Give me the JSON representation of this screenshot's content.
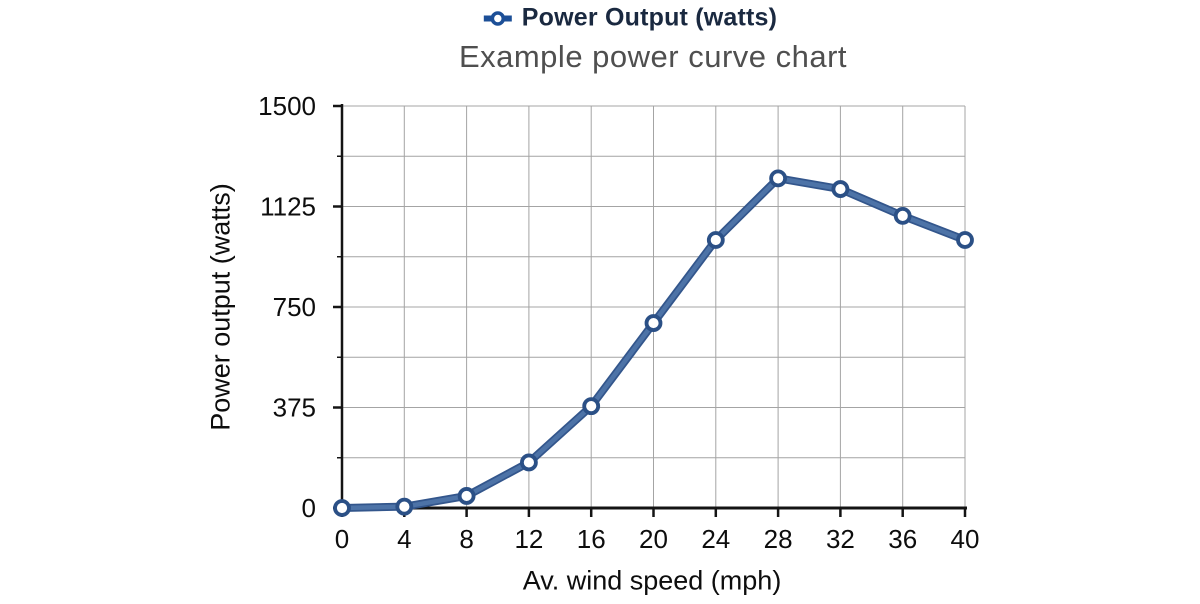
{
  "legend": {
    "label": "Power Output (watts)"
  },
  "chart_data": {
    "type": "line",
    "title": "Example power curve chart",
    "xlabel": "Av. wind speed (mph)",
    "ylabel": "Power output (watts)",
    "series": [
      {
        "name": "Power Output (watts)",
        "x": [
          0,
          4,
          8,
          12,
          16,
          20,
          24,
          28,
          32,
          36,
          40
        ],
        "y": [
          0,
          5,
          45,
          170,
          380,
          690,
          1000,
          1230,
          1190,
          1090,
          1000
        ]
      }
    ],
    "xlim": [
      0,
      40
    ],
    "ylim": [
      0,
      1500
    ],
    "x_ticks": [
      0,
      4,
      8,
      12,
      16,
      20,
      24,
      28,
      32,
      36,
      40
    ],
    "y_ticks_major": [
      0,
      375,
      750,
      1125,
      1500
    ],
    "y_ticks_minor": [
      187.5,
      562.5,
      937.5,
      1312.5
    ],
    "grid": true,
    "legend_position": "top-center",
    "marker_style": "hollow-circle",
    "colors": {
      "line_outer": "#33568c",
      "line_inner": "#4d73a7",
      "marker_ring": "#2b5086",
      "marker_fill": "#ffffff",
      "grid": "#a4a4a4",
      "axis": "#141414",
      "tick_label": "#0d0d0d",
      "title": "#4f4f4f",
      "legend_icon": "#1c4f97",
      "legend_text": "#1a2940"
    }
  }
}
